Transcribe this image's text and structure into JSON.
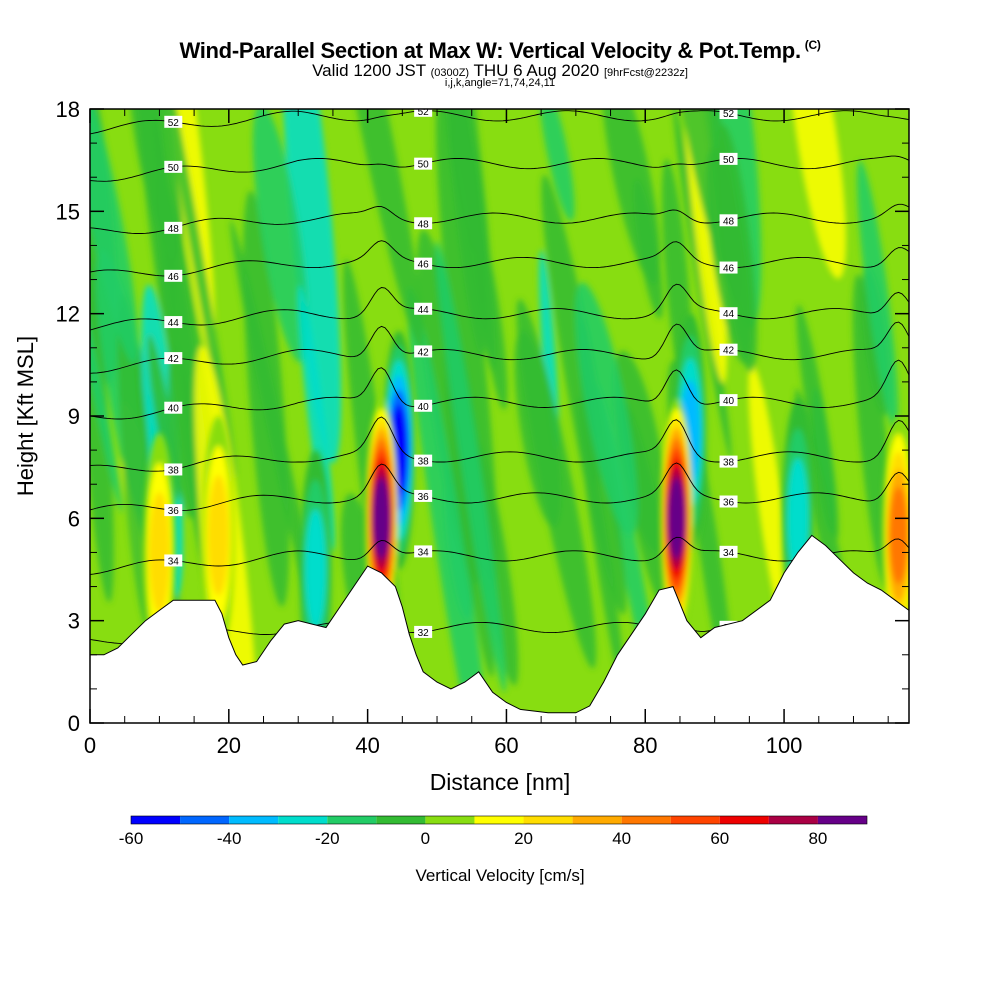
{
  "header": {
    "title": "Wind-Parallel Section at Max W: Vertical Velocity & Pot.Temp.",
    "copyright": "(C)",
    "valid_prefix": "Valid 1200 JST",
    "utc": "(0300Z)",
    "valid_date": "THU 6 Aug 2020",
    "forecast": "[9hrFcst@2232z]",
    "params": "i,j,k,angle=71,74,24,11"
  },
  "chart_data": {
    "type": "heatmap",
    "xlabel": "Distance [nm]",
    "ylabel": "Height [Kft MSL]",
    "xlim": [
      0,
      118
    ],
    "ylim": [
      0,
      18
    ],
    "x_ticks": [
      0,
      20,
      40,
      60,
      80,
      100
    ],
    "y_ticks": [
      0,
      3,
      6,
      9,
      12,
      15,
      18
    ],
    "colorbar": {
      "label": "Vertical Velocity [cm/s]",
      "levels": [
        -60,
        -50,
        -40,
        -30,
        -20,
        -10,
        0,
        10,
        20,
        30,
        40,
        50,
        60,
        70,
        80,
        90
      ],
      "tick_labels": [
        -60,
        -40,
        -20,
        0,
        20,
        40,
        60,
        80
      ],
      "colors": [
        "#0000ff",
        "#0066ff",
        "#00bbff",
        "#00ddcc",
        "#22cc66",
        "#33bb33",
        "#88dd11",
        "#ffff00",
        "#ffdd00",
        "#ffaa00",
        "#ff7700",
        "#ff4400",
        "#ee0000",
        "#aa0044",
        "#660088"
      ]
    },
    "terrain_kft": [
      [
        0,
        2.0
      ],
      [
        2,
        2.0
      ],
      [
        4,
        2.2
      ],
      [
        6,
        2.6
      ],
      [
        8,
        3.0
      ],
      [
        10,
        3.3
      ],
      [
        12,
        3.6
      ],
      [
        14,
        3.6
      ],
      [
        18,
        3.6
      ],
      [
        19,
        3.2
      ],
      [
        20,
        2.5
      ],
      [
        21,
        2.0
      ],
      [
        22,
        1.7
      ],
      [
        24,
        1.8
      ],
      [
        26,
        2.4
      ],
      [
        28,
        2.9
      ],
      [
        30,
        3.0
      ],
      [
        32,
        2.9
      ],
      [
        34,
        2.8
      ],
      [
        36,
        3.4
      ],
      [
        38,
        4.0
      ],
      [
        40,
        4.6
      ],
      [
        42,
        4.4
      ],
      [
        44,
        4.0
      ],
      [
        45,
        3.4
      ],
      [
        46,
        2.6
      ],
      [
        47,
        2.0
      ],
      [
        48,
        1.5
      ],
      [
        50,
        1.2
      ],
      [
        52,
        1.0
      ],
      [
        54,
        1.2
      ],
      [
        56,
        1.5
      ],
      [
        58,
        0.9
      ],
      [
        60,
        0.6
      ],
      [
        62,
        0.4
      ],
      [
        66,
        0.3
      ],
      [
        70,
        0.3
      ],
      [
        72,
        0.5
      ],
      [
        74,
        1.2
      ],
      [
        76,
        2.0
      ],
      [
        78,
        2.6
      ],
      [
        80,
        3.2
      ],
      [
        82,
        3.9
      ],
      [
        84,
        4.0
      ],
      [
        86,
        3.0
      ],
      [
        88,
        2.5
      ],
      [
        90,
        2.8
      ],
      [
        94,
        3.0
      ],
      [
        98,
        3.6
      ],
      [
        100,
        4.4
      ],
      [
        102,
        5.0
      ],
      [
        104,
        5.5
      ],
      [
        106,
        5.2
      ],
      [
        108,
        4.8
      ],
      [
        110,
        4.4
      ],
      [
        112,
        4.1
      ],
      [
        114,
        3.9
      ],
      [
        116,
        3.6
      ],
      [
        118,
        3.3
      ]
    ],
    "updraft_cores": [
      {
        "x": 42,
        "y": 6.0,
        "w_max": 85
      },
      {
        "x": 84.5,
        "y": 6.0,
        "w_max": 90
      },
      {
        "x": 116.5,
        "y": 5.5,
        "w_max": 45
      },
      {
        "x": 18.5,
        "y": 5.5,
        "w_max": 25
      },
      {
        "x": 10,
        "y": 5.0,
        "w_max": 22
      }
    ],
    "downdraft_zones": [
      {
        "x": 44.5,
        "y": 8.0,
        "w_min": -55
      },
      {
        "x": 86.5,
        "y": 8.5,
        "w_min": -35
      },
      {
        "x": 32.5,
        "y": 4.5,
        "w_min": -30
      },
      {
        "x": 102,
        "y": 6.0,
        "w_min": -25
      }
    ],
    "theta_contours": [
      {
        "label": "32",
        "height_kft": 2.8
      },
      {
        "label": "34",
        "height_kft": 4.9
      },
      {
        "label": "36",
        "height_kft": 6.6
      },
      {
        "label": "38",
        "height_kft": 7.8
      },
      {
        "label": "40",
        "height_kft": 9.4
      },
      {
        "label": "42",
        "height_kft": 10.8
      },
      {
        "label": "44",
        "height_kft": 12.0
      },
      {
        "label": "46",
        "height_kft": 13.5
      },
      {
        "label": "48",
        "height_kft": 14.8
      },
      {
        "label": "50",
        "height_kft": 16.4
      },
      {
        "label": "52",
        "height_kft": 17.8
      }
    ]
  }
}
